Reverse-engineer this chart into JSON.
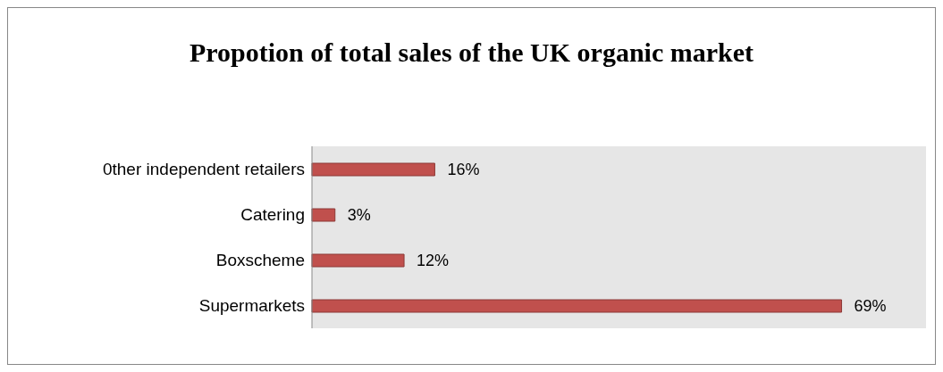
{
  "chart_data": {
    "type": "bar",
    "orientation": "horizontal",
    "title": "Propotion of total sales of the UK organic market",
    "categories": [
      "0ther independent retailers",
      "Catering",
      "Boxscheme",
      "Supermarkets"
    ],
    "values": [
      16,
      3,
      12,
      69
    ],
    "value_labels": [
      "16%",
      "3%",
      "12%",
      "69%"
    ],
    "color": "#c0504d",
    "grid": false
  }
}
